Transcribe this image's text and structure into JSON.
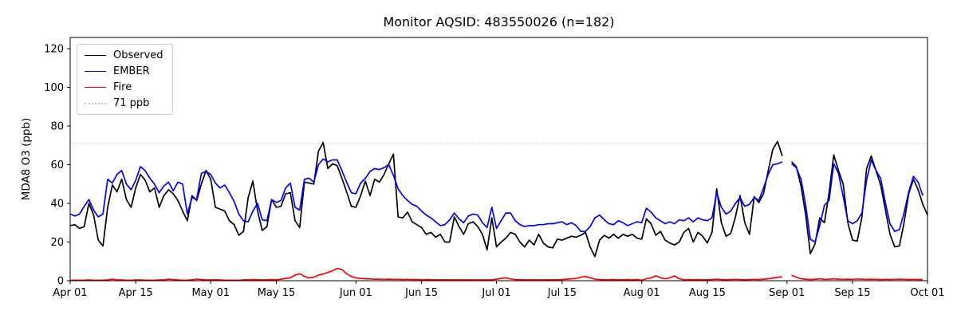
{
  "title": "Monitor AQSID: 483550026 (n=182)",
  "legend": {
    "items": [
      {
        "label": "Observed",
        "color": "#000000",
        "dash": "solid"
      },
      {
        "label": "EMBER",
        "color": "#0000ff",
        "dash": "solid"
      },
      {
        "label": "Fire",
        "color": "#ff0000",
        "dash": "solid"
      },
      {
        "label": "71 ppb",
        "color": "#c8c8c8",
        "dash": "dotted"
      }
    ]
  },
  "axes": {
    "ylabel": "MDA8 O3 (ppb)",
    "yticks": [
      0,
      20,
      40,
      60,
      80,
      100,
      120
    ],
    "ylim": [
      0,
      125.8
    ],
    "xtick_labels": [
      "Apr 01",
      "Apr 15",
      "May 01",
      "May 15",
      "Jun 01",
      "Jun 15",
      "Jul 01",
      "Jul 15",
      "Aug 01",
      "Aug 15",
      "Sep 01",
      "Sep 15",
      "Oct 01"
    ],
    "xtick_days": [
      0,
      14,
      30,
      44,
      61,
      75,
      91,
      105,
      122,
      136,
      153,
      167,
      183
    ]
  },
  "chart_data": {
    "type": "line",
    "title": "Monitor AQSID: 483550026 (n=182)",
    "ylabel": "MDA8 O3 (ppb)",
    "x_start": "Apr 01",
    "x_end": "Oct 01",
    "n_points": 184,
    "missing_day": "Sep 01",
    "threshold": {
      "label": "71 ppb",
      "value": 71,
      "color": "#c8c8c8"
    },
    "legend_position": "upper left",
    "grid": false,
    "series": [
      {
        "name": "Observed",
        "color": "#000000",
        "values": [
          28.5,
          29,
          27,
          28,
          40,
          34,
          21,
          18,
          38,
          49.5,
          46,
          52.5,
          42,
          38,
          48,
          55,
          52,
          46,
          48,
          38,
          44,
          47,
          45,
          41.5,
          36,
          31,
          44,
          41.5,
          50,
          57,
          52.5,
          38,
          37,
          36,
          31,
          29,
          23.5,
          25.5,
          43,
          51.5,
          36,
          26,
          28,
          42,
          38,
          38.5,
          45,
          45.5,
          31,
          27.5,
          51,
          50.5,
          50,
          67,
          71.5,
          58,
          60.5,
          59.5,
          53,
          46,
          38.5,
          38,
          44,
          51.5,
          44,
          52.5,
          51,
          55,
          60.5,
          65.5,
          33,
          32.5,
          35.5,
          30.5,
          29,
          27.5,
          24,
          25,
          22.5,
          24,
          20,
          20,
          33,
          28,
          24,
          29.5,
          30.5,
          28,
          24,
          16,
          32.5,
          17.5,
          20,
          22,
          25,
          24,
          20,
          17.5,
          21,
          18.5,
          24,
          19.5,
          17.5,
          17,
          21.5,
          21,
          22,
          23,
          22.5,
          23.5,
          25,
          17.5,
          12.5,
          21,
          23.5,
          22,
          24,
          22,
          24,
          23,
          24,
          22,
          21.5,
          32,
          29.5,
          23.5,
          25.5,
          21,
          19.5,
          18.5,
          20,
          25,
          27,
          20,
          25,
          23,
          19.5,
          25,
          47.5,
          30,
          23,
          24.5,
          33,
          44,
          30,
          24,
          43.5,
          40.5,
          45,
          57,
          68,
          72,
          64.5,
          null,
          61.5,
          59,
          49,
          34,
          14,
          19,
          32.5,
          30,
          45.5,
          65,
          57,
          50,
          30,
          21,
          20.5,
          33,
          58,
          64.5,
          57,
          49.5,
          37,
          24,
          17.5,
          18,
          30,
          45,
          52.5,
          47,
          39.5,
          34
        ]
      },
      {
        "name": "EMBER",
        "color": "#0000ff",
        "values": [
          34.5,
          33.5,
          34.5,
          38.5,
          42,
          36.5,
          33,
          34.5,
          52.5,
          50.5,
          55,
          57,
          50,
          47,
          52,
          59,
          57,
          53,
          50,
          45.5,
          49,
          51,
          46.5,
          51,
          50,
          34.5,
          43,
          42,
          55.5,
          56.5,
          55,
          50.5,
          48,
          49.5,
          45.5,
          41,
          34.5,
          31,
          30.5,
          36,
          40,
          31.5,
          31,
          42,
          40.5,
          41.5,
          48,
          50.5,
          38,
          36.5,
          52.5,
          53,
          51,
          60,
          63,
          61.5,
          62.5,
          62.5,
          57,
          51,
          45.5,
          45,
          50.5,
          53,
          56.5,
          58,
          57.5,
          58.5,
          60,
          54.5,
          47.5,
          44,
          41.5,
          39.5,
          38.5,
          36,
          34,
          32.5,
          30.5,
          28.5,
          29,
          31.5,
          35,
          32,
          30,
          33.5,
          34.5,
          34,
          30,
          27.5,
          38,
          27,
          31,
          35,
          35,
          31,
          29,
          28,
          28.5,
          28.5,
          29,
          29,
          29.5,
          29.5,
          30,
          30.5,
          29,
          30,
          28.5,
          25.5,
          25.5,
          28,
          32.5,
          34,
          31.5,
          29.5,
          29,
          31,
          30,
          28.5,
          29.5,
          30.5,
          30,
          37.5,
          35.5,
          32.5,
          31,
          29.5,
          30.5,
          29.5,
          31.5,
          31,
          32.5,
          30.5,
          32.5,
          31.5,
          31,
          32.5,
          45.5,
          38,
          34.5,
          36,
          40,
          43,
          38.5,
          39.5,
          43,
          41.5,
          48,
          55,
          60,
          60.5,
          61.5,
          null,
          60.5,
          58.5,
          52.5,
          39,
          21.5,
          20,
          28.5,
          39,
          41.5,
          60.5,
          55.5,
          43.5,
          31,
          29.5,
          31,
          35,
          52,
          62.5,
          57,
          53,
          40.5,
          29.5,
          25.5,
          26.5,
          35,
          46,
          54,
          51,
          44,
          null
        ]
      },
      {
        "name": "Fire",
        "color": "#ff0000",
        "values": [
          0.3,
          0.3,
          0.3,
          0.3,
          0.4,
          0.3,
          0.3,
          0.3,
          0.5,
          0.8,
          0.5,
          0.4,
          0.3,
          0.3,
          0.4,
          0.4,
          0.3,
          0.3,
          0.3,
          0.4,
          0.5,
          0.8,
          0.6,
          0.4,
          0.3,
          0.3,
          0.5,
          0.8,
          0.6,
          0.4,
          0.4,
          0.5,
          0.4,
          0.3,
          0.3,
          0.3,
          0.3,
          0.4,
          0.5,
          0.6,
          0.5,
          0.4,
          0.5,
          0.6,
          0.5,
          0.8,
          1.2,
          1.5,
          2.9,
          3.6,
          2.2,
          1.5,
          1.8,
          2.9,
          3.5,
          4.3,
          5.2,
          6.3,
          5.8,
          3.6,
          2.2,
          1.5,
          1.2,
          1,
          0.9,
          0.8,
          0.8,
          0.7,
          0.8,
          0.7,
          0.7,
          0.6,
          0.7,
          0.6,
          0.6,
          0.5,
          0.6,
          0.5,
          0.5,
          0.5,
          0.5,
          0.4,
          0.5,
          0.4,
          0.4,
          0.5,
          0.4,
          0.4,
          0.4,
          0.4,
          0.5,
          0.8,
          1.2,
          1.5,
          0.9,
          0.6,
          0.5,
          0.5,
          0.4,
          0.5,
          0.5,
          0.4,
          0.5,
          0.5,
          0.5,
          0.6,
          0.8,
          1,
          1.2,
          1.8,
          2.2,
          1.5,
          0.8,
          0.6,
          0.5,
          0.5,
          0.6,
          0.5,
          0.5,
          0.6,
          0.5,
          0.6,
          0.3,
          1,
          1.5,
          2.5,
          1.5,
          1,
          1.5,
          2.5,
          1,
          0.5,
          0.6,
          0.5,
          0.6,
          0.5,
          0.5,
          0.6,
          0.8,
          0.6,
          0.5,
          0.6,
          0.7,
          0.6,
          0.5,
          0.6,
          0.7,
          0.6,
          0.8,
          1,
          1.4,
          1.8,
          2,
          null,
          2.9,
          1.8,
          1,
          0.8,
          0.6,
          0.8,
          1,
          0.7,
          0.8,
          1,
          0.8,
          0.7,
          0.8,
          0.7,
          0.9,
          0.8,
          0.7,
          0.8,
          0.7,
          0.6,
          0.7,
          0.6,
          0.7,
          0.8,
          0.7,
          0.6,
          0.7,
          0.6,
          0.6,
          null
        ]
      }
    ]
  }
}
